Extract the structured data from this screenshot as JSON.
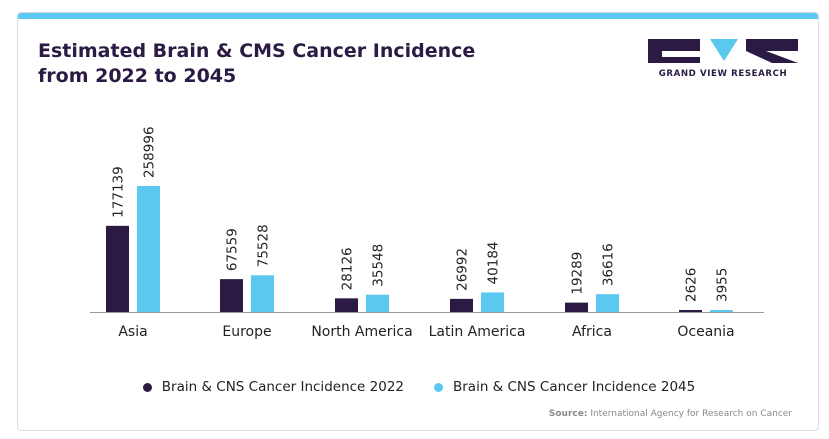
{
  "header": {
    "title_line1": "Estimated Brain & CMS Cancer Incidence",
    "title_line2": "from 2022 to 2045"
  },
  "brand": {
    "name": "GRAND VIEW RESEARCH",
    "color_dark": "#2b1b44",
    "color_light": "#5bc8f0"
  },
  "source": {
    "label": "Source:",
    "text": "International Agency for Research on Cancer"
  },
  "chart_data": {
    "type": "bar",
    "title": "Estimated Brain & CMS Cancer Incidence from 2022 to 2045",
    "categories": [
      "Asia",
      "Europe",
      "North America",
      "Latin America",
      "Africa",
      "Oceania"
    ],
    "series": [
      {
        "name": "Brain & CNS Cancer Incidence 2022",
        "color": "#2b1b44",
        "values": [
          177139,
          67559,
          28126,
          26992,
          19289,
          2626
        ]
      },
      {
        "name": "Brain & CNS Cancer Incidence 2045",
        "color": "#5bc8f0",
        "values": [
          258996,
          75528,
          35548,
          40184,
          36616,
          3955
        ]
      }
    ],
    "ylim": [
      0,
      258996
    ],
    "grid": false,
    "legend_position": "bottom",
    "data_labels": true,
    "xlabel": "",
    "ylabel": ""
  }
}
